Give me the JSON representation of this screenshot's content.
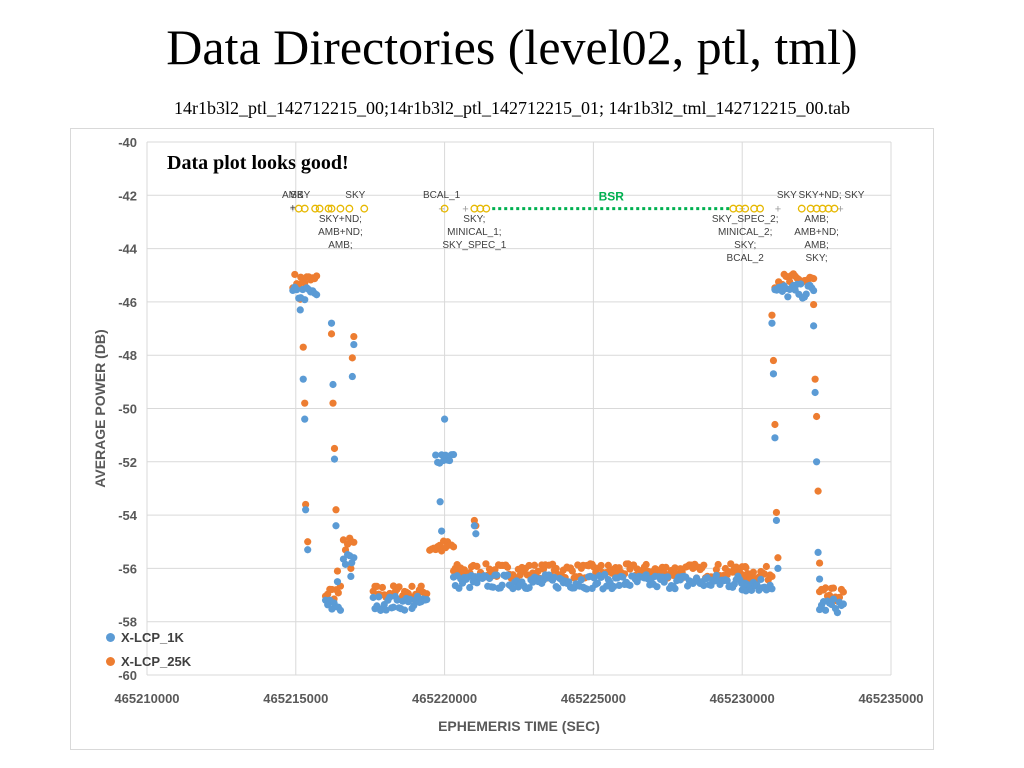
{
  "title": "Data Directories (level02, ptl, tml)",
  "subtitle": "14r1b3l2_ptl_142712215_00;14r1b3l2_ptl_142712215_01; 14r1b3l2_tml_142712215_00.tab",
  "note": "Data plot looks good!",
  "colors": {
    "series_1k": "#5b9bd5",
    "series_25k": "#ed7d31",
    "bsr": "#00b050",
    "marker": "#e6b800",
    "grid": "#d9d9d9",
    "axis_text": "#595959"
  },
  "chart_data": {
    "type": "scatter",
    "xlabel": "EPHEMERIS TIME (SEC)",
    "ylabel": "AVERAGE POWER (DB)",
    "xlim": [
      465210000,
      465235000
    ],
    "ylim": [
      -60,
      -40
    ],
    "xticks": [
      "465210000",
      "465215000",
      "465220000",
      "465225000",
      "465230000",
      "465235000"
    ],
    "yticks": [
      "-40",
      "-42",
      "-44",
      "-46",
      "-48",
      "-50",
      "-52",
      "-54",
      "-56",
      "-58",
      "-60"
    ],
    "grid": true,
    "legend_position": "bottom-left",
    "series": [
      {
        "name": "X-LCP_1K",
        "segments": [
          {
            "x0": 465214900,
            "x1": 465215700,
            "y": -45.7
          },
          {
            "x0": 465216000,
            "x1": 465216500,
            "y": -57.4
          },
          {
            "x0": 465216600,
            "x1": 465216950,
            "y": -55.7
          },
          {
            "x0": 465217600,
            "x1": 465219400,
            "y": -57.3
          },
          {
            "x0": 465219700,
            "x1": 465220300,
            "y": -51.8
          },
          {
            "x0": 465220300,
            "x1": 465230100,
            "y": -56.5
          },
          {
            "x0": 465230000,
            "x1": 465231000,
            "y": -56.6
          },
          {
            "x0": 465231100,
            "x1": 465232400,
            "y": -45.6
          },
          {
            "x0": 465232600,
            "x1": 465233400,
            "y": -57.4
          }
        ],
        "scatter": [
          [
            465215150,
            -46.3
          ],
          [
            465215250,
            -48.9
          ],
          [
            465215300,
            -50.4
          ],
          [
            465215330,
            -53.8
          ],
          [
            465215400,
            -55.3
          ],
          [
            465216200,
            -46.8
          ],
          [
            465216250,
            -49.1
          ],
          [
            465216300,
            -51.9
          ],
          [
            465216350,
            -54.4
          ],
          [
            465216400,
            -56.5
          ],
          [
            465216850,
            -56.3
          ],
          [
            465216900,
            -48.8
          ],
          [
            465216950,
            -47.6
          ],
          [
            465219850,
            -53.5
          ],
          [
            465219900,
            -54.6
          ],
          [
            465220000,
            -50.4
          ],
          [
            465221000,
            -54.4
          ],
          [
            465221050,
            -54.7
          ],
          [
            465231000,
            -46.8
          ],
          [
            465231050,
            -48.7
          ],
          [
            465231100,
            -51.1
          ],
          [
            465231150,
            -54.2
          ],
          [
            465231200,
            -56.0
          ],
          [
            465232400,
            -46.9
          ],
          [
            465232450,
            -49.4
          ],
          [
            465232500,
            -52.0
          ],
          [
            465232550,
            -55.4
          ],
          [
            465232600,
            -56.4
          ]
        ]
      },
      {
        "name": "X-LCP_25K",
        "segments": [
          {
            "x0": 465214900,
            "x1": 465215700,
            "y": -45.2
          },
          {
            "x0": 465216000,
            "x1": 465216500,
            "y": -56.9
          },
          {
            "x0": 465216600,
            "x1": 465216950,
            "y": -55.1
          },
          {
            "x0": 465217600,
            "x1": 465219400,
            "y": -56.9
          },
          {
            "x0": 465219500,
            "x1": 465220300,
            "y": -55.2
          },
          {
            "x0": 465220300,
            "x1": 465230100,
            "y": -56.1
          },
          {
            "x0": 465230000,
            "x1": 465231000,
            "y": -56.2
          },
          {
            "x0": 465231100,
            "x1": 465232400,
            "y": -45.2
          },
          {
            "x0": 465232600,
            "x1": 465233400,
            "y": -57.0
          }
        ],
        "scatter": [
          [
            465215150,
            -45.9
          ],
          [
            465215250,
            -47.7
          ],
          [
            465215300,
            -49.8
          ],
          [
            465215330,
            -53.6
          ],
          [
            465215400,
            -55.0
          ],
          [
            465216200,
            -47.2
          ],
          [
            465216250,
            -49.8
          ],
          [
            465216300,
            -51.5
          ],
          [
            465216350,
            -53.8
          ],
          [
            465216400,
            -56.1
          ],
          [
            465216850,
            -56.0
          ],
          [
            465216900,
            -48.1
          ],
          [
            465216950,
            -47.3
          ],
          [
            465221000,
            -54.2
          ],
          [
            465221050,
            -54.4
          ],
          [
            465231000,
            -46.5
          ],
          [
            465231050,
            -48.2
          ],
          [
            465231100,
            -50.6
          ],
          [
            465231150,
            -53.9
          ],
          [
            465231200,
            -55.6
          ],
          [
            465232400,
            -46.1
          ],
          [
            465232450,
            -48.9
          ],
          [
            465232500,
            -50.3
          ],
          [
            465232550,
            -53.1
          ],
          [
            465232600,
            -55.8
          ]
        ]
      }
    ],
    "event_markers": {
      "y": -42.5,
      "crosses": [
        465214900,
        465219900,
        465220700,
        465230000,
        465231200,
        465233300
      ],
      "circles": [
        465215100,
        465215300,
        465215650,
        465215800,
        465216100,
        465216200,
        465216500,
        465216800,
        465217300,
        465220000,
        465221000,
        465221200,
        465221400,
        465229700,
        465229900,
        465230100,
        465230400,
        465230600,
        465232000,
        465232300,
        465232500,
        465232700,
        465232900,
        465233100
      ]
    },
    "bsr": {
      "label": "BSR",
      "x0": 465221600,
      "x1": 465229600,
      "y": -42.5
    },
    "annotations": [
      {
        "lines": [
          "AMB",
          "+"
        ],
        "x": 465214900,
        "y": -42.1
      },
      {
        "lines": [
          "SKY"
        ],
        "x": 465215150,
        "y": -42.1
      },
      {
        "lines": [
          "SKY"
        ],
        "x": 465217000,
        "y": -42.1
      },
      {
        "lines": [
          "SKY+ND;",
          "AMB+ND;",
          "AMB;"
        ],
        "x": 465216500,
        "y": -43.0
      },
      {
        "lines": [
          "BCAL_1"
        ],
        "x": 465219900,
        "y": -42.1
      },
      {
        "lines": [
          "SKY;",
          "MINICAL_1;",
          "SKY_SPEC_1"
        ],
        "x": 465221000,
        "y": -43.0
      },
      {
        "lines": [
          "SKY_SPEC_2;",
          "MINICAL_2;",
          "SKY;",
          "BCAL_2"
        ],
        "x": 465230100,
        "y": -43.0
      },
      {
        "lines": [
          "SKY"
        ],
        "x": 465231500,
        "y": -42.1
      },
      {
        "lines": [
          "SKY+ND; SKY"
        ],
        "x": 465233000,
        "y": -42.1
      },
      {
        "lines": [
          "AMB;",
          "AMB+ND;",
          "AMB;",
          "SKY;"
        ],
        "x": 465232500,
        "y": -43.0
      }
    ]
  }
}
